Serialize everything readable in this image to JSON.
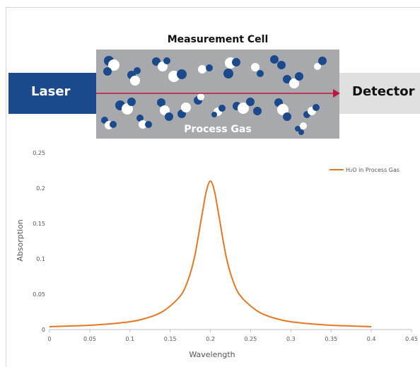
{
  "diagram": {
    "cell_title": "Measurement Cell",
    "laser_label": "Laser",
    "detector_label": "Detector",
    "gas_label": "Process Gas",
    "colors": {
      "laser": "#1b4a8c",
      "cell": "#a7a9ac",
      "detector": "#e0e0e0",
      "beam": "#c0143c",
      "molecule_dark": "#1b4a8c",
      "molecule_light": "#ffffff"
    }
  },
  "chart_data": {
    "type": "line",
    "xlabel": "Wavelength",
    "ylabel": "Absorption",
    "xlim": [
      0,
      0.45
    ],
    "ylim": [
      0,
      0.25
    ],
    "xticks": [
      "0",
      "0.05",
      "0.1",
      "0.15",
      "0.2",
      "0.25",
      "0.3",
      "0.35",
      "0.4",
      "0.45"
    ],
    "yticks": [
      "0",
      "0.05",
      "0.1",
      "0.15",
      "0.2",
      "0.25"
    ],
    "legend_position": "top-right",
    "series": [
      {
        "name": "H₂O in Process Gas",
        "color": "#e87722",
        "x": [
          0,
          0.025,
          0.05,
          0.075,
          0.1,
          0.12,
          0.14,
          0.16,
          0.17,
          0.18,
          0.19,
          0.195,
          0.2,
          0.205,
          0.21,
          0.22,
          0.23,
          0.24,
          0.26,
          0.28,
          0.3,
          0.325,
          0.35,
          0.375,
          0.4
        ],
        "y": [
          0.004,
          0.005,
          0.006,
          0.008,
          0.011,
          0.016,
          0.025,
          0.044,
          0.063,
          0.101,
          0.165,
          0.196,
          0.21,
          0.196,
          0.165,
          0.101,
          0.063,
          0.044,
          0.025,
          0.016,
          0.011,
          0.008,
          0.006,
          0.005,
          0.004
        ]
      }
    ]
  }
}
